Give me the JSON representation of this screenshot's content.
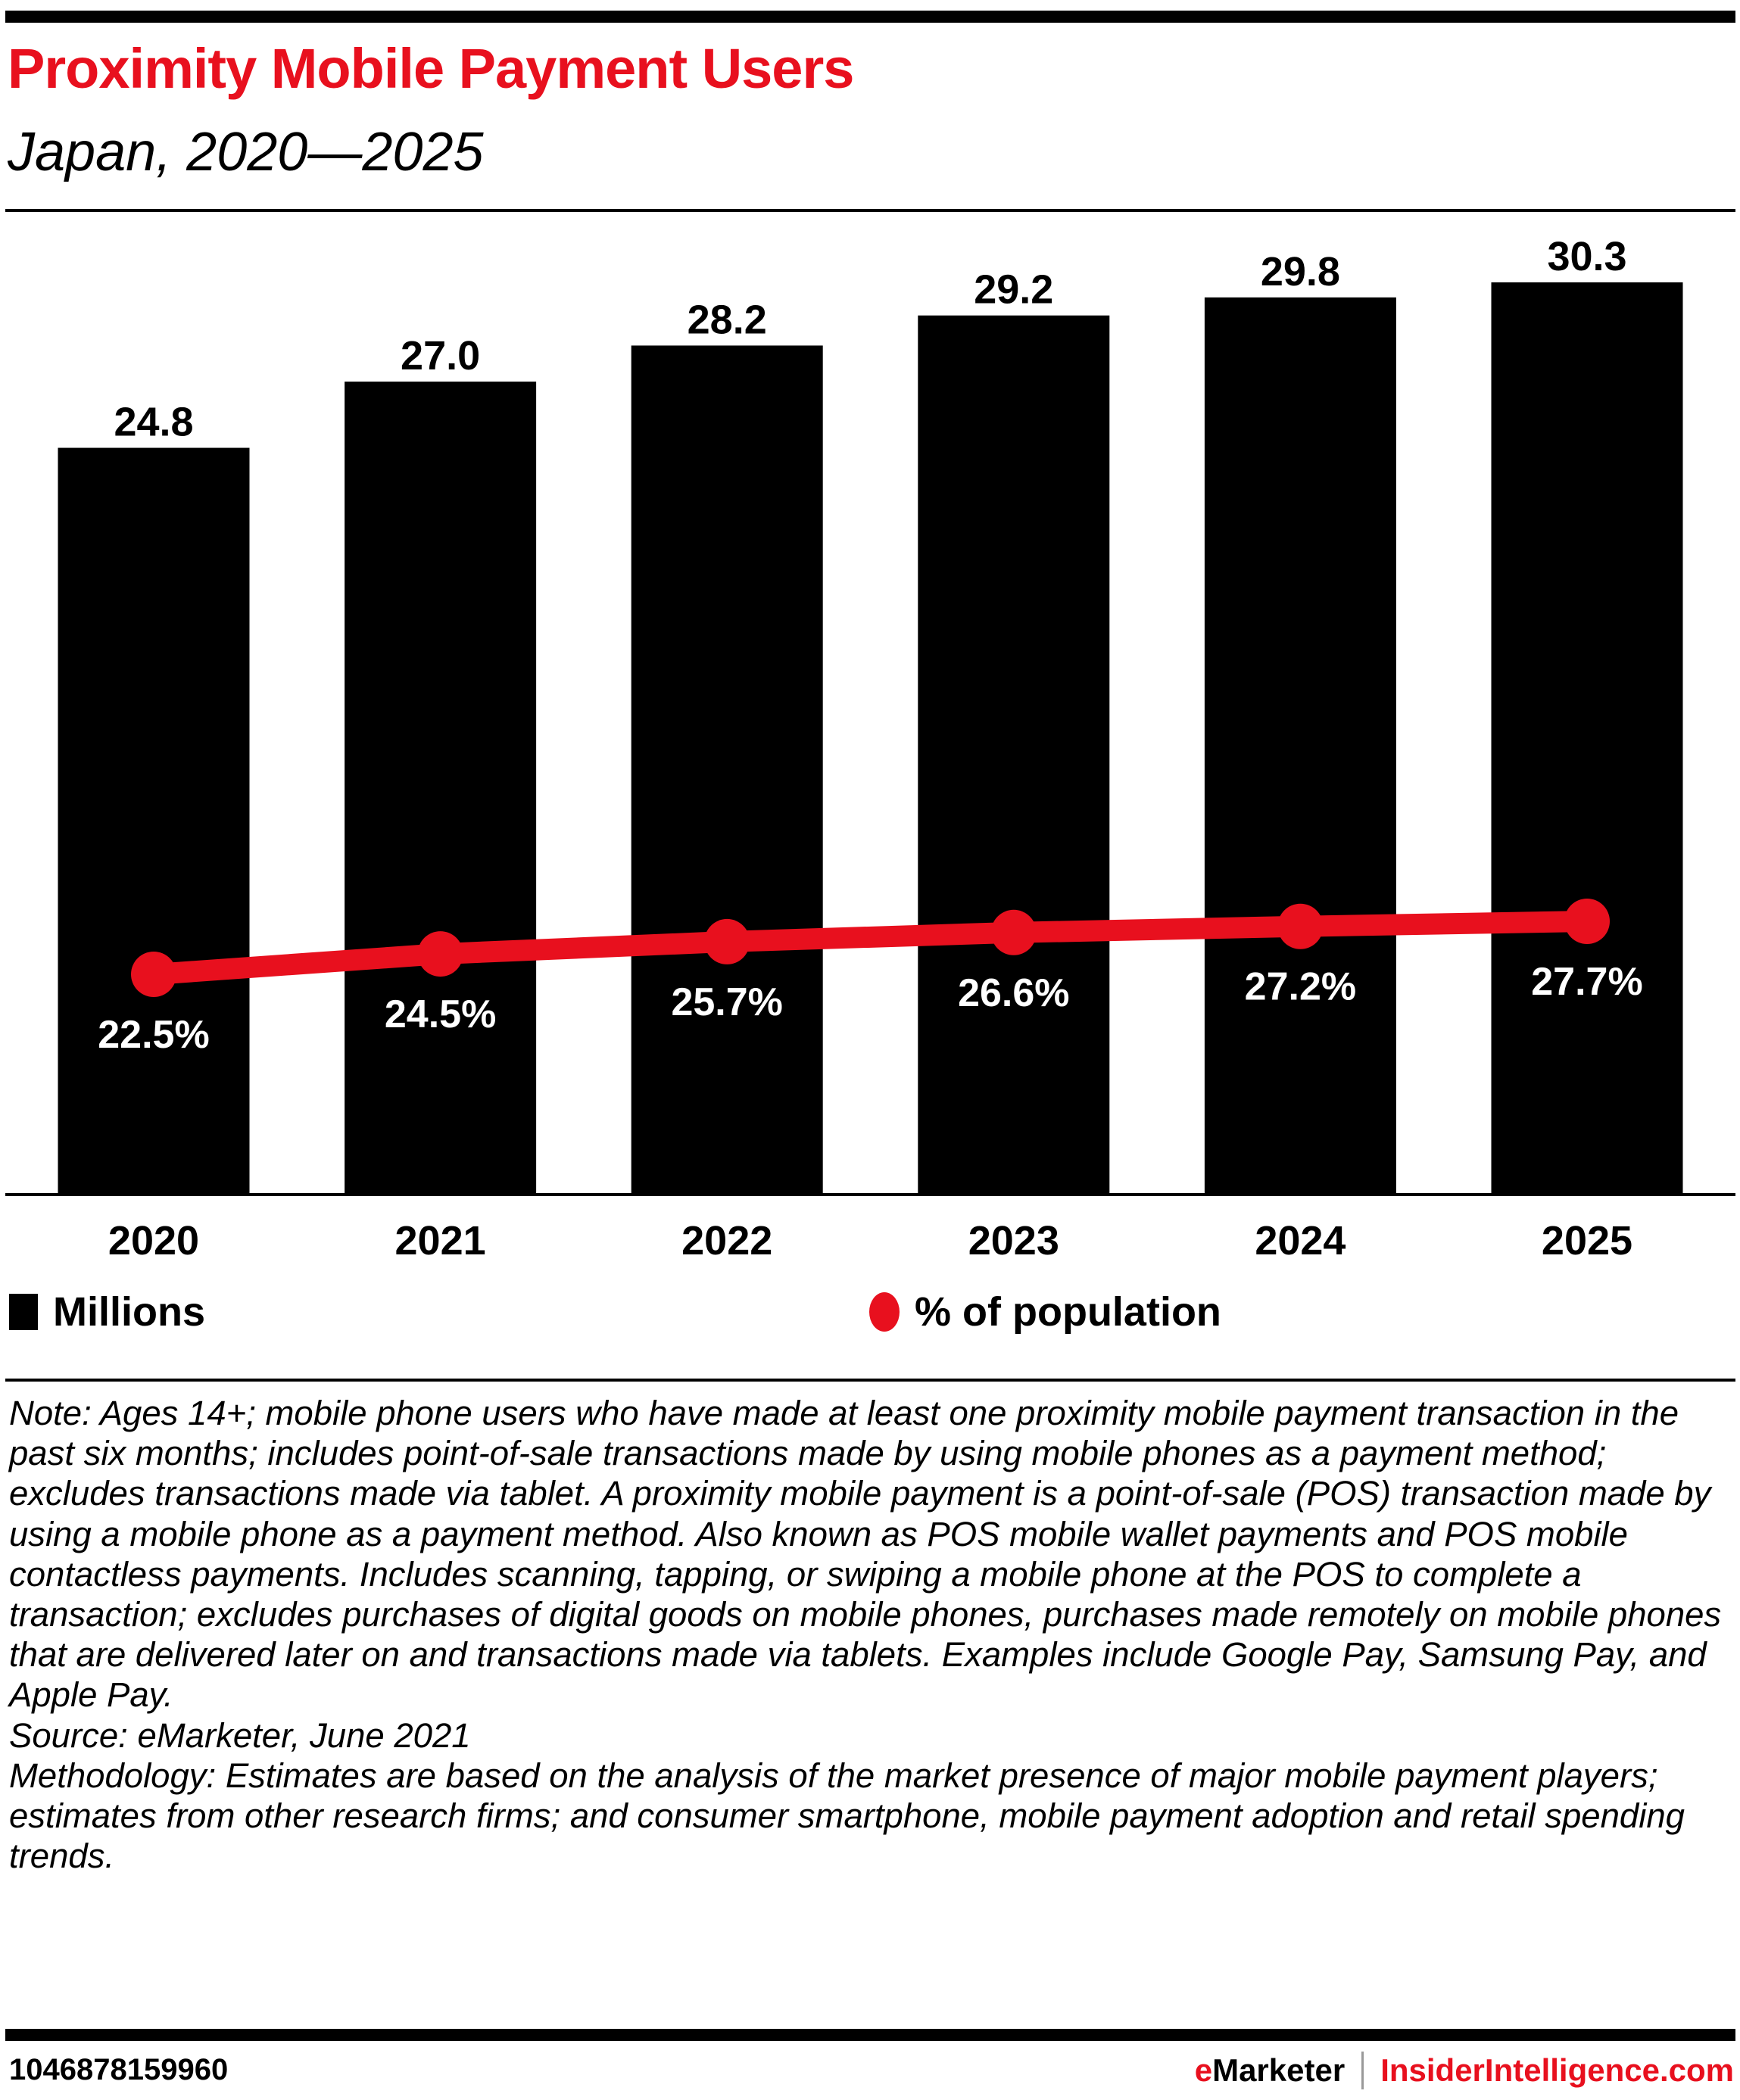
{
  "header": {
    "title": "Proximity Mobile Payment Users",
    "subtitle": "Japan, 2020—2025"
  },
  "colors": {
    "accent_red": "#E8101E",
    "bar": "#000000",
    "separator_gray": "#999999"
  },
  "chart_data": {
    "type": "bar",
    "title": "Proximity Mobile Payment Users",
    "subtitle": "Japan, 2020—2025",
    "categories": [
      "2020",
      "2021",
      "2022",
      "2023",
      "2024",
      "2025"
    ],
    "series": [
      {
        "name": "Millions",
        "type": "bar",
        "values": [
          24.8,
          27.0,
          28.2,
          29.2,
          29.8,
          30.3
        ],
        "labels": [
          "24.8",
          "27.0",
          "28.2",
          "29.2",
          "29.8",
          "30.3"
        ]
      },
      {
        "name": "% of population",
        "type": "line",
        "values": [
          22.5,
          24.5,
          25.7,
          26.6,
          27.2,
          27.7
        ],
        "labels": [
          "22.5%",
          "24.5%",
          "25.7%",
          "26.6%",
          "27.2%",
          "27.7%"
        ]
      }
    ],
    "xlabel": "",
    "ylabel": "",
    "ylim": [
      0,
      30.3
    ],
    "grid": false,
    "legend_position": "bottom"
  },
  "legend": {
    "millions": "Millions",
    "population": "% of population"
  },
  "notes": {
    "note": "Note: Ages 14+; mobile phone users who have made at least one proximity mobile payment transaction in the past six months; includes point-of-sale transactions made by using mobile phones as a payment method; excludes transactions made via tablet. A proximity mobile payment is a point-of-sale (POS) transaction made by using a mobile phone as a payment method. Also known as POS mobile wallet payments and POS mobile contactless payments. Includes scanning, tapping, or swiping a mobile phone at the POS to complete a transaction; excludes purchases of digital goods on mobile phones, purchases made remotely on mobile phones that are delivered later on and transactions made via tablets. Examples include Google Pay, Samsung Pay, and Apple Pay.",
    "source": "Source: eMarketer, June 2021",
    "methodology": "Methodology: Estimates are based on the analysis of the market presence of major mobile payment players; estimates from other research firms; and consumer smartphone, mobile payment adoption and retail spending trends."
  },
  "footer": {
    "chart_id": "1046878159960",
    "brand_e": "e",
    "brand_marketer": "Marketer",
    "brand_site": "InsiderIntelligence.com"
  }
}
